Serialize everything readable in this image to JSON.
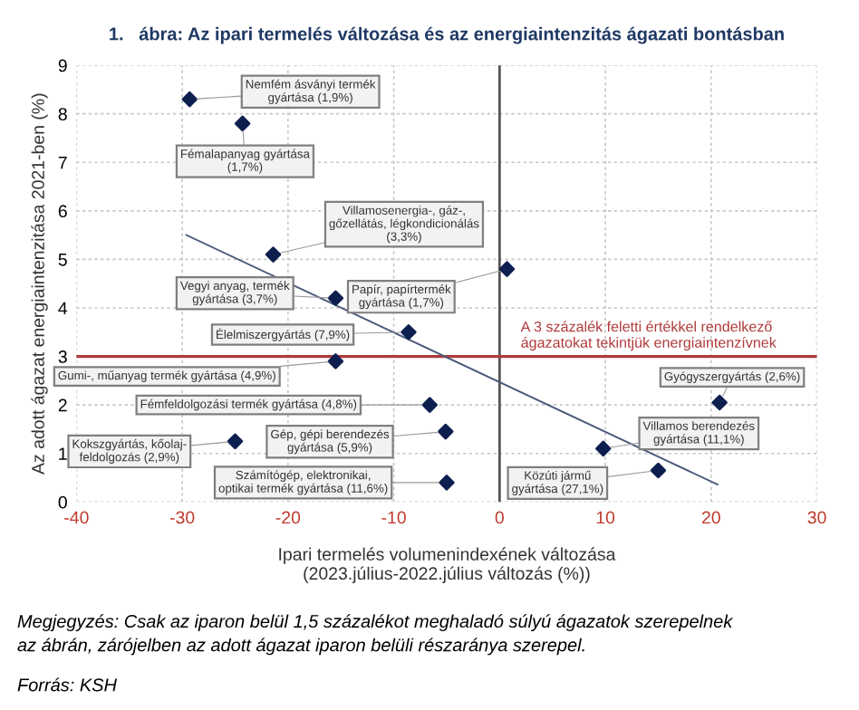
{
  "chart_data": {
    "type": "scatter",
    "title": "1.   ábra: Az ipari termelés változása és az energiaintenzitás ágazati bontásban",
    "xlabel": "Ipari termelés volumenindexének változása\n(2023.július-2022.július változás (%))",
    "ylabel": "Az adott ágazat energiaintenzitása 2021-ben (%)",
    "series": [
      {
        "color": "#0d1f4f",
        "marker": "diamond",
        "x": [
          -29.3,
          -24.3,
          -21.4,
          -15.5,
          0.7,
          -8.6,
          -15.5,
          -6.6,
          -25.0,
          -5.1,
          -5.0,
          20.8,
          9.8,
          15.0
        ],
        "values": [
          8.3,
          7.8,
          5.1,
          4.2,
          4.8,
          3.5,
          2.9,
          2.0,
          1.25,
          1.45,
          0.4,
          2.05,
          1.1,
          0.65
        ]
      },
      {
        "type": "line",
        "color": "#4a5a7a",
        "x": [
          -29.6,
          20.6
        ],
        "values": [
          5.5,
          0.36
        ]
      }
    ],
    "xlim": [
      -40,
      30
    ],
    "xticks": [
      -40,
      -30,
      -20,
      -10,
      0,
      10,
      20,
      30
    ],
    "ylim": [
      0,
      9
    ],
    "yticks": [
      0,
      1,
      2,
      3,
      4,
      5,
      6,
      7,
      8,
      9
    ],
    "grid": true,
    "ref_lines": [
      {
        "axis": "y",
        "value": 3,
        "color": "#b03a3a",
        "label": "A 3 százalék feletti értékkel rendelkező\nágazatokat tekintjük energiaintenzívnek"
      }
    ],
    "annotations": [
      {
        "text": "Nemfém ásványi termék\ngyártása (1,9%)",
        "x": -29.3,
        "y": 8.3
      },
      {
        "text": "Fémalapanyag gyártása\n(1,7%)",
        "x": -24.3,
        "y": 7.8
      },
      {
        "text": "Villamosenergia-, gáz-,\ngőzellátás, légkondicionálás\n(3,3%)",
        "x": -21.4,
        "y": 5.1
      },
      {
        "text": "Vegyi anyag, termék\ngyártása (3,7%)",
        "x": -15.5,
        "y": 4.2
      },
      {
        "text": "Papír, papírtermék\ngyártása (1,7%)",
        "x": 0.7,
        "y": 4.8
      },
      {
        "text": "Élelmiszergyártás (7,9%)",
        "x": -8.6,
        "y": 3.5
      },
      {
        "text": "Gumi-, műanyag termék gyártása (4,9%)",
        "x": -15.5,
        "y": 2.9
      },
      {
        "text": "Fémfeldolgozási termék gyártása (4,8%)",
        "x": -6.6,
        "y": 2.0
      },
      {
        "text": "Kokszgyártás, kőolaj-\nfeldolgozás (2,9%)",
        "x": -25.0,
        "y": 1.25
      },
      {
        "text": "Gép, gépi berendezés\ngyártása (5,9%)",
        "x": -5.1,
        "y": 1.45
      },
      {
        "text": "Számítógép, elektronikai,\noptikai termék gyártása (11,6%)",
        "x": -5.0,
        "y": 0.4
      },
      {
        "text": "Gyógyszergyártás (2,6%)",
        "x": 20.8,
        "y": 2.05
      },
      {
        "text": "Villamos berendezés\ngyártása (11,1%)",
        "x": 9.8,
        "y": 1.1
      },
      {
        "text": "Közúti jármű\ngyártása (27,1%)",
        "x": 15.0,
        "y": 0.65
      },
      "Megjegyzés: Csak az iparon belül 1,5 százalékot meghaladó súlyú ágazatok szerepelnek\naz ábrán, zárójelben az adott ágazat iparon belüli részaránya szerepel.",
      "Forrás: KSH"
    ]
  }
}
